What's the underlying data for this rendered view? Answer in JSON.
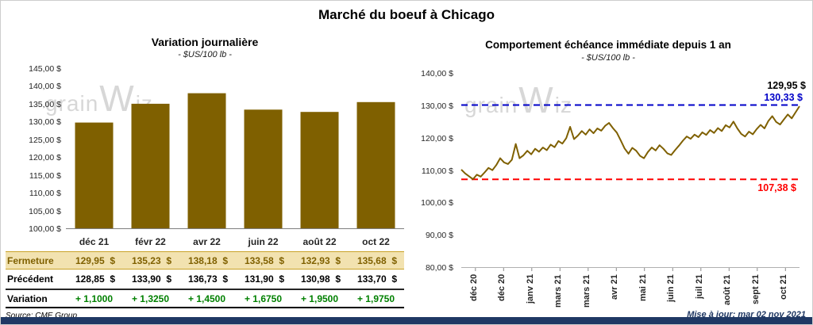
{
  "page_title": "Marché du boeuf à Chicago",
  "watermark": {
    "part1": "grain",
    "part2": "W",
    "part3": "iz"
  },
  "footer": {
    "source": "Source: CME Group",
    "updated": "Mise à jour: mar 02 nov 2021"
  },
  "colors": {
    "bar": "#7F6000",
    "line": "#7F6000",
    "ref_high": "#0000C8",
    "ref_low": "#FF0000",
    "variation_text": "#008000",
    "fermeture_bg": "#F2E2B0",
    "fermeture_border": "#C9A227",
    "fermeture_text": "#7F6000",
    "bottom_bar": "#1F3864"
  },
  "chart_data": [
    {
      "type": "bar",
      "title": "Variation journalière",
      "subtitle": "- $US/100 lb -",
      "categories": [
        "déc 21",
        "févr 22",
        "avr 22",
        "juin 22",
        "août 22",
        "oct 22"
      ],
      "values": [
        129.95,
        135.23,
        138.18,
        133.58,
        132.93,
        135.68
      ],
      "ylim": [
        100,
        145
      ],
      "ytick_labels": [
        "145,00 $",
        "140,00 $",
        "135,00 $",
        "130,00 $",
        "125,00 $",
        "120,00 $",
        "115,00 $",
        "110,00 $",
        "105,00 $",
        "100,00 $"
      ]
    },
    {
      "type": "line",
      "title": "Comportement échéance immédiate depuis 1 an",
      "subtitle": "- $US/100 lb -",
      "ylim": [
        80,
        140
      ],
      "ytick_labels": [
        "140,00 $",
        "130,00 $",
        "120,00 $",
        "110,00 $",
        "100,00 $",
        "90,00 $",
        "80,00 $"
      ],
      "x_labels": [
        "déc 20",
        "déc 20",
        "janv 21",
        "mars 21",
        "mars 21",
        "avr 21",
        "mai 21",
        "juin 21",
        "juil 21",
        "août 21",
        "sept 21",
        "oct 21"
      ],
      "reference_lines": [
        {
          "value": 130.33,
          "label": "130,33 $",
          "color": "#0000C8"
        },
        {
          "value": 107.38,
          "label": "107,38 $",
          "color": "#FF0000"
        }
      ],
      "last_label": "129,95 $",
      "values": [
        110.4,
        109.2,
        108.3,
        107.4,
        108.8,
        108.2,
        109.5,
        110.9,
        110.2,
        111.8,
        113.9,
        112.6,
        112.1,
        113.4,
        118.3,
        113.9,
        114.8,
        116.2,
        115.1,
        116.8,
        115.9,
        117.2,
        116.4,
        118.1,
        117.3,
        119.2,
        118.4,
        120.1,
        123.6,
        119.8,
        120.9,
        122.3,
        121.2,
        122.8,
        121.6,
        123.1,
        122.4,
        123.9,
        124.8,
        123.2,
        121.8,
        119.4,
        116.9,
        115.3,
        117.1,
        116.2,
        114.6,
        113.9,
        115.8,
        117.2,
        116.3,
        117.9,
        116.8,
        115.4,
        114.9,
        116.4,
        117.8,
        119.3,
        120.6,
        119.9,
        121.2,
        120.4,
        121.9,
        121.1,
        122.6,
        121.7,
        123.2,
        122.3,
        124.1,
        123.4,
        125.2,
        123.1,
        121.4,
        120.6,
        122.1,
        121.3,
        122.9,
        124.2,
        123.1,
        125.4,
        126.9,
        125.1,
        124.3,
        125.9,
        127.4,
        126.2,
        128.1,
        129.95
      ]
    }
  ],
  "table": {
    "rows": [
      {
        "label": "Fermeture",
        "values": [
          "129,95  $",
          "135,23  $",
          "138,18  $",
          "133,58  $",
          "132,93  $",
          "135,68  $"
        ]
      },
      {
        "label": "Précédent",
        "values": [
          "128,85  $",
          "133,90  $",
          "136,73  $",
          "131,90  $",
          "130,98  $",
          "133,70  $"
        ]
      },
      {
        "label": "Variation",
        "values": [
          "+ 1,1000",
          "+ 1,3250",
          "+ 1,4500",
          "+ 1,6750",
          "+ 1,9500",
          "+ 1,9750"
        ]
      }
    ]
  }
}
